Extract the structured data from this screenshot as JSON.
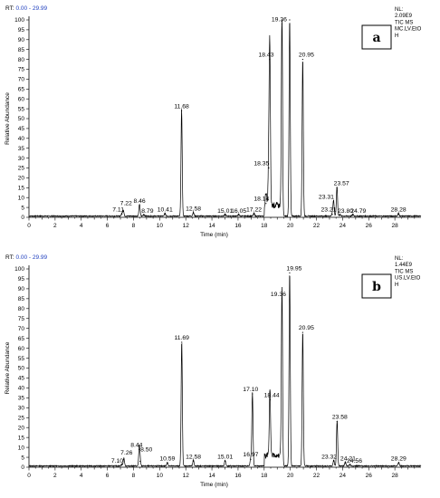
{
  "chart_data": [
    {
      "type": "line",
      "panel_label": "a",
      "rt_key": "RT:",
      "rt_range": "0.00 - 29.99",
      "info_lines": [
        "NL:",
        "2.09E9",
        "TIC  MS",
        "MC.LV.EtO",
        "H"
      ],
      "xlabel": "Time (min)",
      "ylabel": "Relative Abundance",
      "xlim": [
        0,
        30
      ],
      "ylim": [
        0,
        100
      ],
      "x_ticks": [
        0,
        2,
        4,
        6,
        8,
        10,
        12,
        14,
        16,
        18,
        20,
        22,
        24,
        26,
        28
      ],
      "y_ticks": [
        0,
        5,
        10,
        15,
        20,
        25,
        30,
        35,
        40,
        45,
        50,
        55,
        60,
        65,
        70,
        75,
        80,
        85,
        90,
        95,
        100
      ],
      "peaks": [
        {
          "x": 7.11,
          "y": 1.5,
          "label": "7.11"
        },
        {
          "x": 7.22,
          "y": 3,
          "label": "7.22"
        },
        {
          "x": 8.46,
          "y": 6,
          "label": "8.46"
        },
        {
          "x": 8.79,
          "y": 1,
          "label": "8.79"
        },
        {
          "x": 10.41,
          "y": 1.5,
          "label": "10.41"
        },
        {
          "x": 11.68,
          "y": 54,
          "label": "11.68"
        },
        {
          "x": 12.58,
          "y": 2,
          "label": "12.58"
        },
        {
          "x": 15.01,
          "y": 1,
          "label": "15.01"
        },
        {
          "x": 16.05,
          "y": 1,
          "label": "16.05"
        },
        {
          "x": 17.22,
          "y": 1.5,
          "label": "17.22"
        },
        {
          "x": 18.14,
          "y": 7,
          "label": "18.14"
        },
        {
          "x": 18.35,
          "y": 25,
          "label": "18.35"
        },
        {
          "x": 18.43,
          "y": 80,
          "label": "18.43"
        },
        {
          "x": 19.36,
          "y": 98,
          "label": "19.36"
        },
        {
          "x": 19.95,
          "y": 100,
          "label": ""
        },
        {
          "x": 20.95,
          "y": 80,
          "label": "20.95"
        },
        {
          "x": 23.21,
          "y": 1.5,
          "label": "23.21"
        },
        {
          "x": 23.31,
          "y": 8,
          "label": "23.31"
        },
        {
          "x": 23.57,
          "y": 15,
          "label": "23.57"
        },
        {
          "x": 23.8,
          "y": 1,
          "label": "23.80"
        },
        {
          "x": 24.79,
          "y": 1,
          "label": "24.79"
        },
        {
          "x": 28.28,
          "y": 1.5,
          "label": "28.28"
        }
      ]
    },
    {
      "type": "line",
      "panel_label": "b",
      "rt_key": "RT:",
      "rt_range": "0.00 - 29.99",
      "info_lines": [
        "NL:",
        "1.44E9",
        "TIC  MS",
        "US.LV.EtO",
        "H"
      ],
      "xlabel": "Time (min)",
      "ylabel": "Relative Abundance",
      "xlim": [
        0,
        30
      ],
      "ylim": [
        0,
        100
      ],
      "x_ticks": [
        0,
        2,
        4,
        6,
        8,
        10,
        12,
        14,
        16,
        18,
        20,
        22,
        24,
        26,
        28
      ],
      "y_ticks": [
        0,
        5,
        10,
        15,
        20,
        25,
        30,
        35,
        40,
        45,
        50,
        55,
        60,
        65,
        70,
        75,
        80,
        85,
        90,
        95,
        100
      ],
      "peaks": [
        {
          "x": 7.1,
          "y": 1,
          "label": "7.10"
        },
        {
          "x": 7.26,
          "y": 4,
          "label": "7.26"
        },
        {
          "x": 8.44,
          "y": 9,
          "label": "8.44"
        },
        {
          "x": 8.5,
          "y": 3,
          "label": "8.50"
        },
        {
          "x": 10.59,
          "y": 2,
          "label": "10.59"
        },
        {
          "x": 11.69,
          "y": 63,
          "label": "11.69"
        },
        {
          "x": 12.58,
          "y": 3,
          "label": "12.58"
        },
        {
          "x": 15.01,
          "y": 3,
          "label": "15.01"
        },
        {
          "x": 16.97,
          "y": 4,
          "label": "16.97"
        },
        {
          "x": 17.1,
          "y": 37,
          "label": "17.10"
        },
        {
          "x": 18.44,
          "y": 34,
          "label": "18.44"
        },
        {
          "x": 19.36,
          "y": 85,
          "label": "19.36"
        },
        {
          "x": 19.95,
          "y": 98,
          "label": "19.95"
        },
        {
          "x": 20.95,
          "y": 68,
          "label": "20.95"
        },
        {
          "x": 23.32,
          "y": 3,
          "label": "23.32"
        },
        {
          "x": 23.58,
          "y": 23,
          "label": "23.58"
        },
        {
          "x": 24.21,
          "y": 2,
          "label": "24.21"
        },
        {
          "x": 24.56,
          "y": 1,
          "label": "24.56"
        },
        {
          "x": 28.29,
          "y": 2,
          "label": "28.29"
        }
      ]
    }
  ]
}
